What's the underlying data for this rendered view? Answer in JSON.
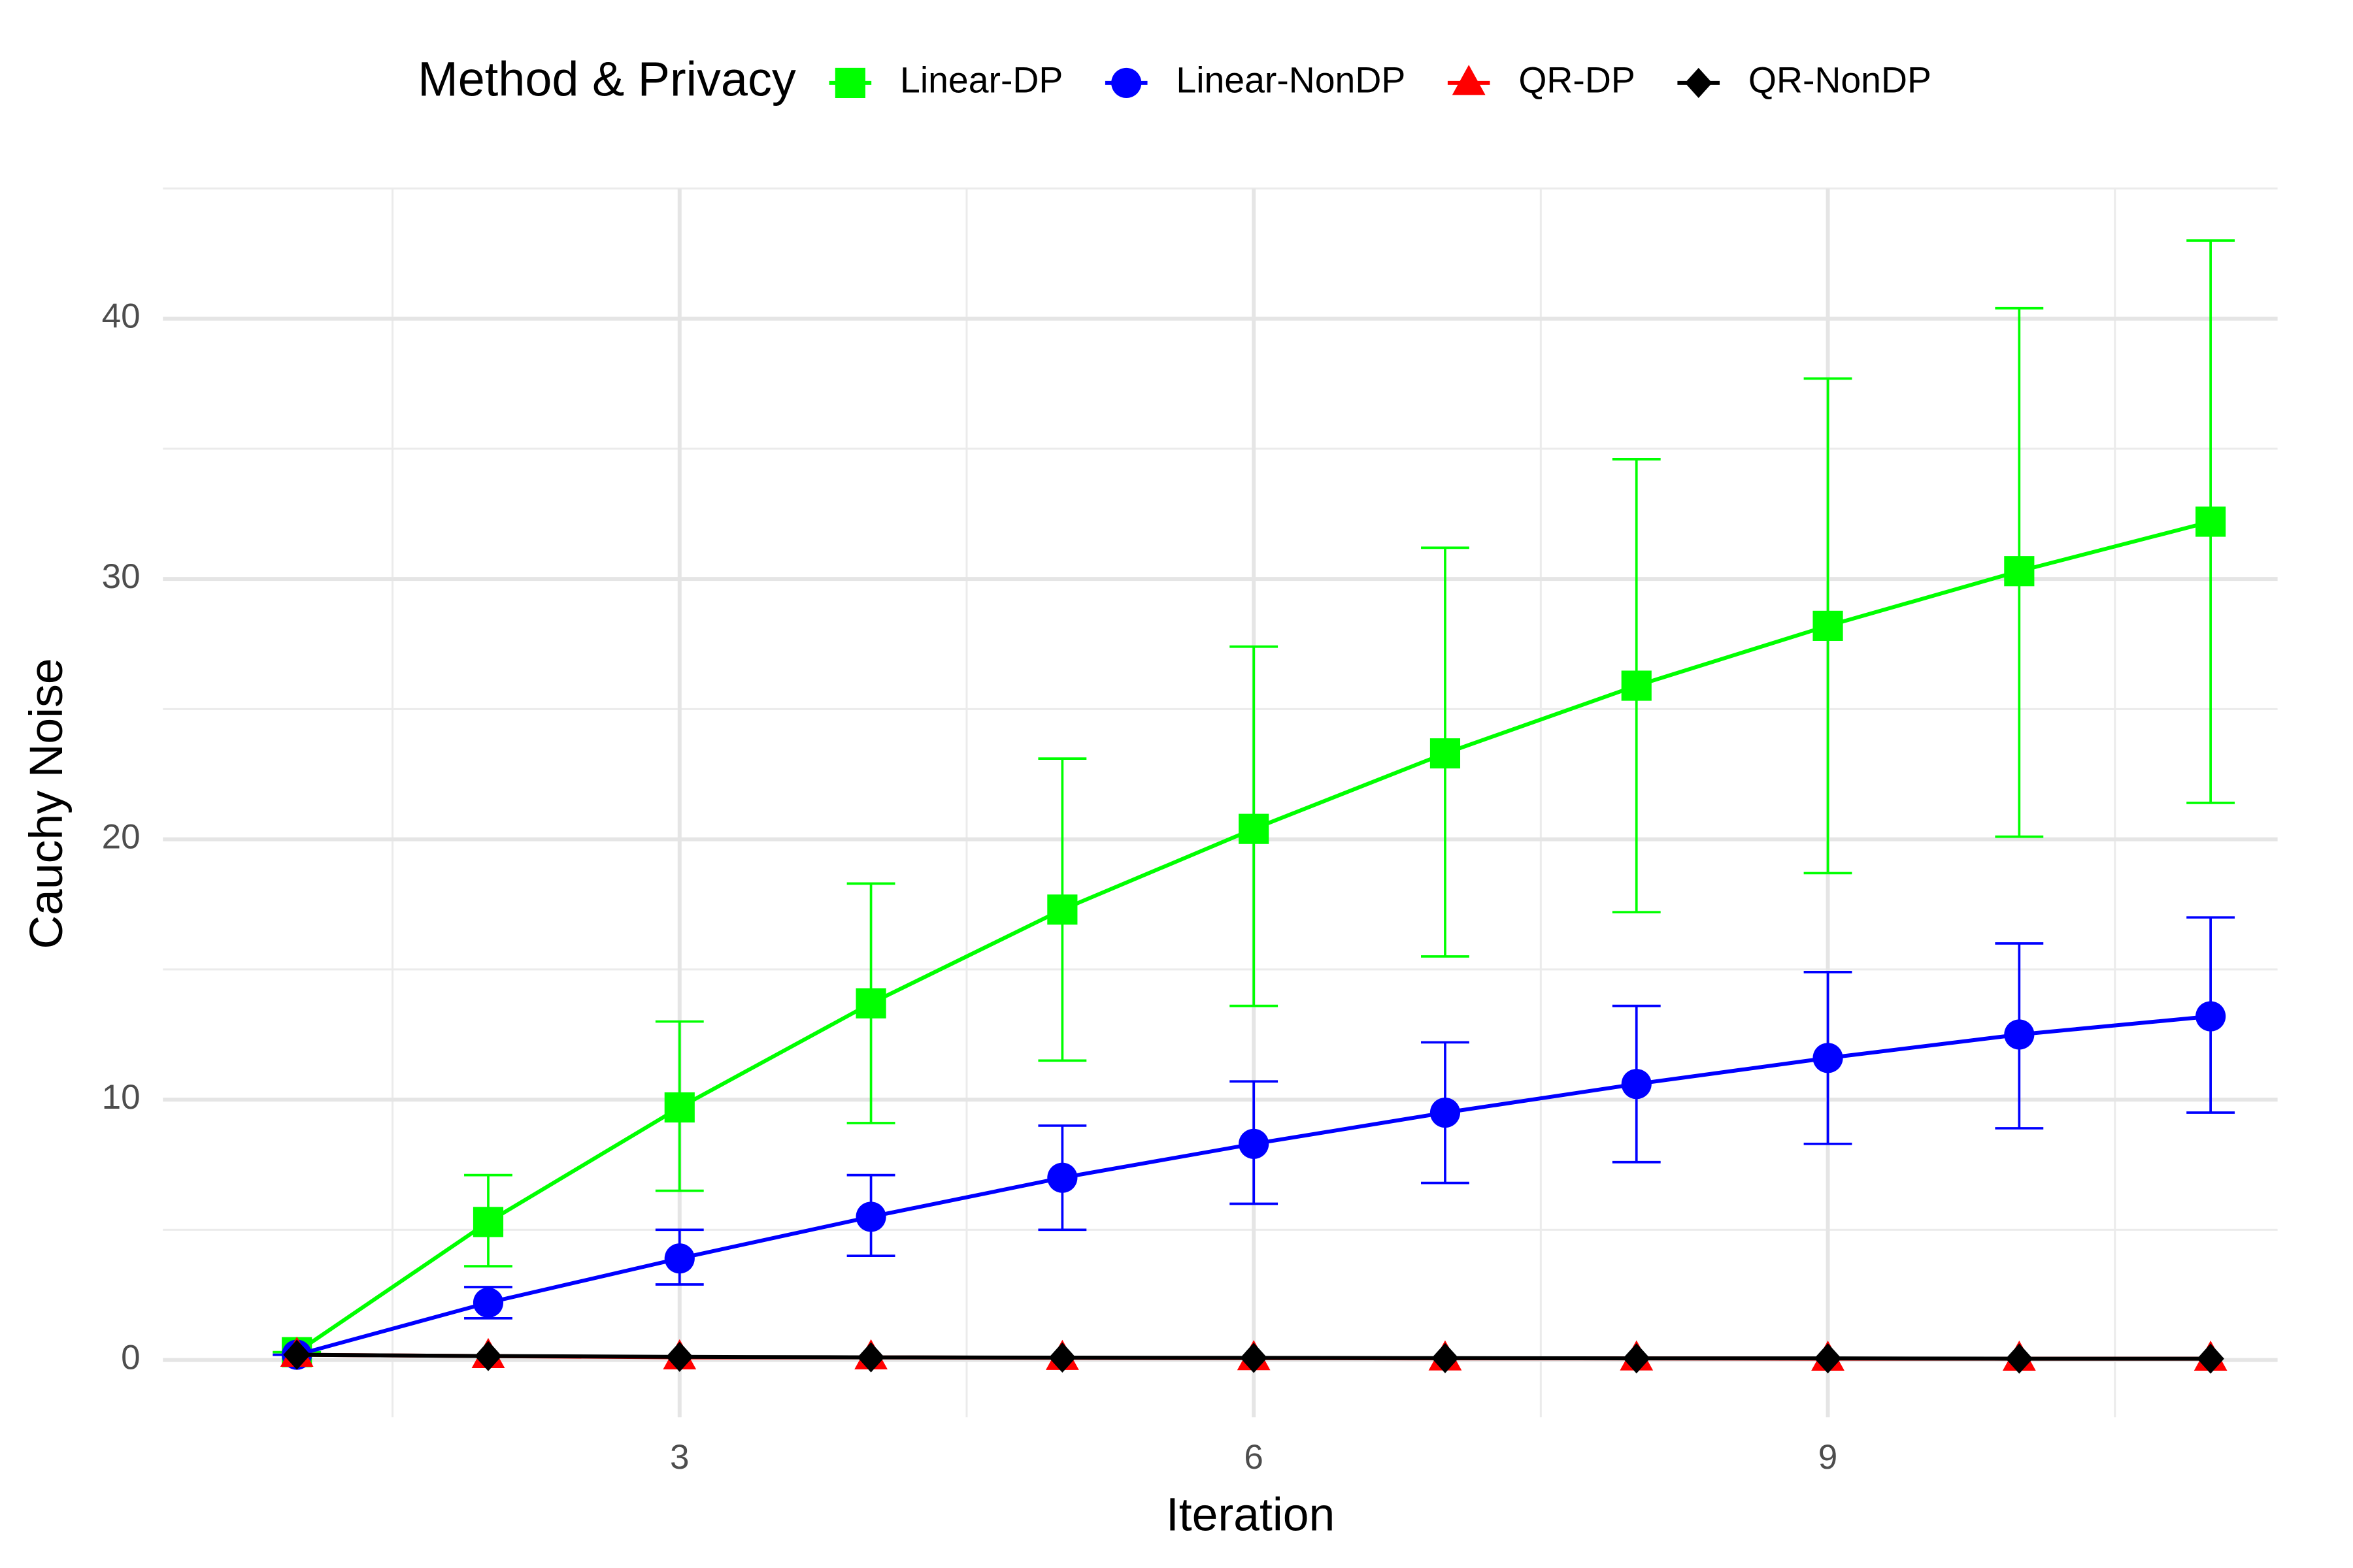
{
  "chart_data": {
    "type": "line",
    "x_label": "Iteration",
    "y_label": "Cauchy Noise",
    "legend_title": "Method & Privacy",
    "legend_position": "top",
    "x": [
      1,
      2,
      3,
      4,
      5,
      6,
      7,
      8,
      9,
      10,
      11
    ],
    "xlim": [
      0.3,
      11.35
    ],
    "ylim": [
      -2.2,
      45
    ],
    "xticks": [
      3,
      6,
      9
    ],
    "yticks": [
      0,
      10,
      20,
      30,
      40
    ],
    "grid": true,
    "series": [
      {
        "name": "Linear-DP",
        "color": "#00ff00",
        "marker": "square",
        "values": [
          0.3,
          5.3,
          9.7,
          13.7,
          17.3,
          20.4,
          23.3,
          25.9,
          28.2,
          30.3,
          32.2
        ],
        "lower": [
          0.3,
          3.6,
          6.5,
          9.1,
          11.5,
          13.6,
          15.5,
          17.2,
          18.7,
          20.1,
          21.4
        ],
        "upper": [
          0.3,
          7.1,
          13.0,
          18.3,
          23.1,
          27.4,
          31.2,
          34.6,
          37.7,
          40.4,
          43.0
        ]
      },
      {
        "name": "Linear-NonDP",
        "color": "#0000ff",
        "marker": "circle",
        "values": [
          0.2,
          2.2,
          3.9,
          5.5,
          7.0,
          8.3,
          9.5,
          10.6,
          11.6,
          12.5,
          13.2
        ],
        "lower": [
          0.2,
          1.6,
          2.9,
          4.0,
          5.0,
          6.0,
          6.8,
          7.6,
          8.3,
          8.9,
          9.5
        ],
        "upper": [
          0.2,
          2.8,
          5.0,
          7.1,
          9.0,
          10.7,
          12.2,
          13.6,
          14.9,
          16.0,
          17.0
        ]
      },
      {
        "name": "QR-DP",
        "color": "#ff0000",
        "marker": "triangle",
        "values": [
          0.2,
          0.15,
          0.1,
          0.1,
          0.08,
          0.07,
          0.06,
          0.06,
          0.05,
          0.05,
          0.05
        ]
      },
      {
        "name": "QR-NonDP",
        "color": "#000000",
        "marker": "diamond",
        "values": [
          0.2,
          0.15,
          0.12,
          0.1,
          0.09,
          0.08,
          0.07,
          0.06,
          0.06,
          0.05,
          0.05
        ]
      }
    ]
  }
}
